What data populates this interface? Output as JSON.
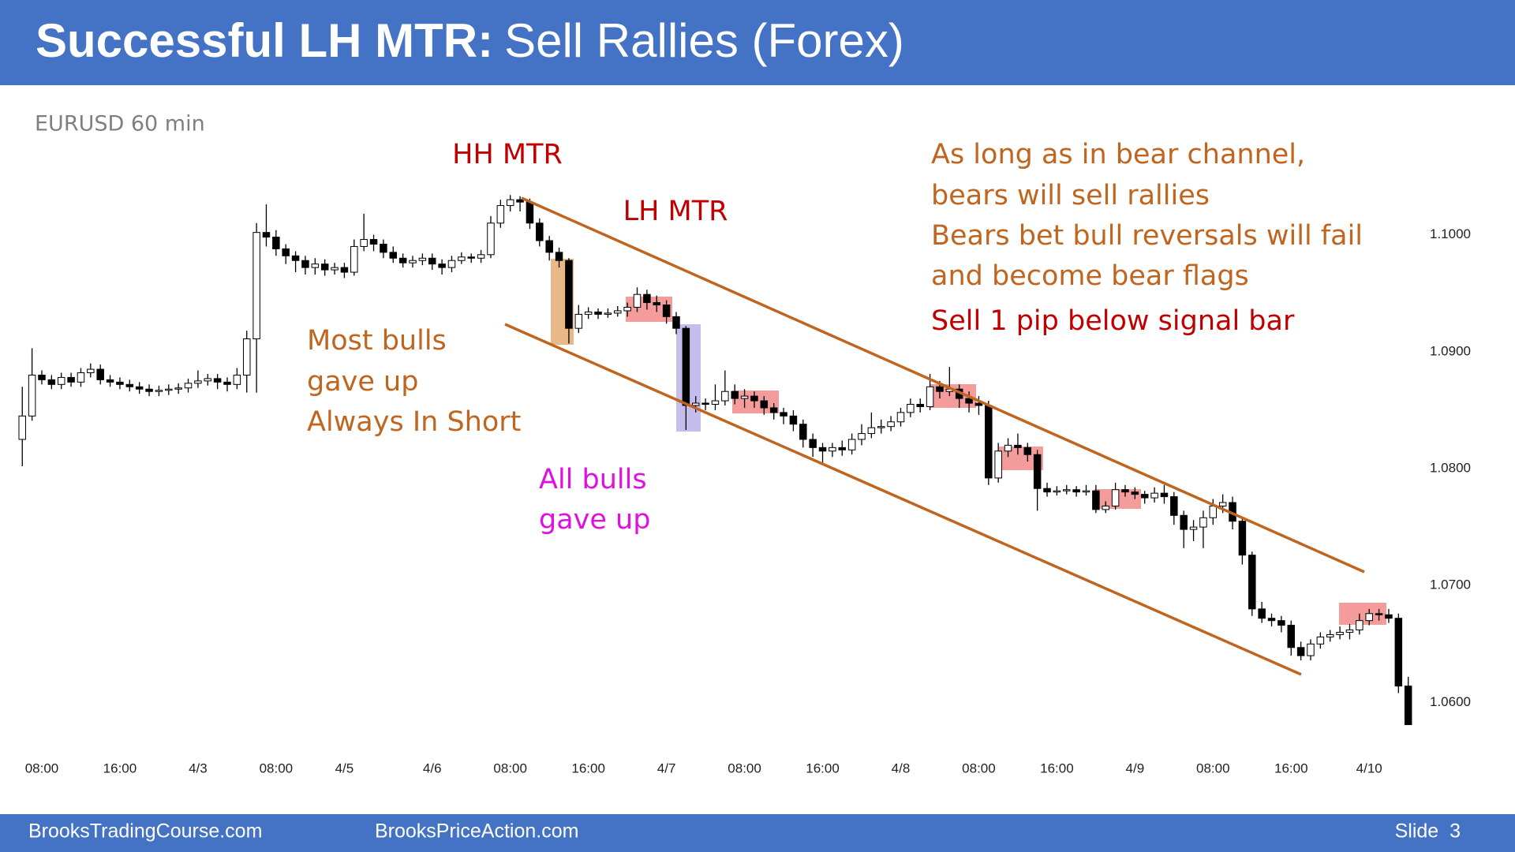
{
  "header": {
    "title_bold": "Successful LH MTR:",
    "title_rest": "Sell Rallies (Forex)"
  },
  "chart_data": {
    "type": "candlestick",
    "title": "EURUSD 60 min",
    "up_color": "#ffffff",
    "down_color": "#000000",
    "annotations": {
      "hh_mtr": "HH MTR",
      "lh_mtr": "LH MTR",
      "most_bulls": [
        "Most bulls",
        "gave up",
        "Always In Short"
      ],
      "all_bulls": [
        "All bulls",
        "gave up"
      ],
      "bear_channel": [
        "As long as in bear channel,",
        "bears will sell rallies",
        "Bears bet bull reversals will fail",
        "and become bear flags"
      ],
      "sell_rule": "Sell 1 pip below signal bar"
    },
    "xlim": [
      -2,
      145
    ],
    "xticks": [
      {
        "value": 2,
        "label": "08:00"
      },
      {
        "value": 10,
        "label": "16:00"
      },
      {
        "value": 18,
        "label": "4/3"
      },
      {
        "value": 26,
        "label": "08:00"
      },
      {
        "value": 33,
        "label": "4/5"
      },
      {
        "value": 42,
        "label": "4/6"
      },
      {
        "value": 50,
        "label": "08:00"
      },
      {
        "value": 58,
        "label": "16:00"
      },
      {
        "value": 66,
        "label": "4/7"
      },
      {
        "value": 74,
        "label": "08:00"
      },
      {
        "value": 82,
        "label": "16:00"
      },
      {
        "value": 90,
        "label": "4/8"
      },
      {
        "value": 98,
        "label": "08:00"
      },
      {
        "value": 106,
        "label": "16:00"
      },
      {
        "value": 114,
        "label": "4/9"
      },
      {
        "value": 122,
        "label": "08:00"
      },
      {
        "value": 130,
        "label": "16:00"
      },
      {
        "value": 138,
        "label": "4/10"
      }
    ],
    "ylim": [
      1.056,
      1.106
    ],
    "yticks": [
      {
        "value": 1.1,
        "label": "1.1000"
      },
      {
        "value": 1.09,
        "label": "1.0900"
      },
      {
        "value": 1.08,
        "label": "1.0800"
      },
      {
        "value": 1.07,
        "label": "1.0700"
      },
      {
        "value": 1.06,
        "label": "1.0600"
      }
    ],
    "open": [
      1.0825,
      1.0845,
      1.088,
      1.0876,
      1.0872,
      1.0878,
      1.0874,
      1.0882,
      1.0885,
      1.0876,
      1.0874,
      1.0872,
      1.087,
      1.0868,
      1.0866,
      1.0867,
      1.0868,
      1.0869,
      1.0873,
      1.0875,
      1.0877,
      1.0874,
      1.0872,
      1.088,
      1.0911,
      1.1002,
      1.0998,
      1.0988,
      1.0982,
      1.0978,
      1.0972,
      1.0975,
      1.097,
      1.0972,
      1.0968,
      1.099,
      1.0996,
      1.0992,
      1.0985,
      1.098,
      1.0976,
      1.0978,
      1.098,
      1.0975,
      1.0972,
      1.0978,
      1.0981,
      1.098,
      1.0983,
      1.101,
      1.1025,
      1.103,
      1.1028,
      1.101,
      1.0995,
      1.0985,
      1.0978,
      1.092,
      1.0932,
      1.0934,
      1.0932,
      1.0933,
      1.0935,
      1.0938,
      1.0949,
      1.0942,
      1.094,
      1.093,
      1.092,
      1.0854,
      1.0856,
      1.0855,
      1.0858,
      1.0866,
      1.086,
      1.0862,
      1.0858,
      1.0852,
      1.0848,
      1.0845,
      1.0838,
      1.0825,
      1.0818,
      1.0815,
      1.0818,
      1.0816,
      1.0825,
      1.083,
      1.0835,
      1.0836,
      1.084,
      1.0848,
      1.0855,
      1.0853,
      1.087,
      1.0866,
      1.0868,
      1.086,
      1.0856,
      1.0854,
      1.0792,
      1.0815,
      1.082,
      1.0818,
      1.0812,
      1.0783,
      1.078,
      1.0781,
      1.0782,
      1.078,
      1.0781,
      1.0765,
      1.0768,
      1.0782,
      1.078,
      1.0778,
      1.0775,
      1.0779,
      1.0776,
      1.076,
      1.0748,
      1.075,
      1.0758,
      1.0768,
      1.0771,
      1.0755,
      1.0726,
      1.068,
      1.0672,
      1.067,
      1.0666,
      1.0647,
      1.064,
      1.065,
      1.0656,
      1.0658,
      1.066,
      1.0662,
      1.067,
      1.0676,
      1.0675,
      1.0672,
      1.0614
    ],
    "high": [
      1.087,
      1.0903,
      1.0884,
      1.088,
      1.0882,
      1.0882,
      1.0886,
      1.089,
      1.0889,
      1.088,
      1.0878,
      1.0876,
      1.0874,
      1.0872,
      1.0871,
      1.0872,
      1.0873,
      1.0877,
      1.0884,
      1.0881,
      1.0881,
      1.0878,
      1.0886,
      1.0918,
      1.101,
      1.1026,
      1.1004,
      1.0992,
      1.0986,
      1.0982,
      1.098,
      1.0979,
      1.0976,
      1.0976,
      1.0996,
      1.1018,
      1.1,
      1.0996,
      1.099,
      1.0984,
      1.0982,
      1.0984,
      1.0984,
      1.0979,
      1.0982,
      1.0985,
      1.0984,
      1.0987,
      1.1016,
      1.103,
      1.1034,
      1.1033,
      1.1031,
      1.1014,
      1.0999,
      1.0989,
      1.098,
      1.094,
      1.0938,
      1.0937,
      1.0937,
      1.0939,
      1.0942,
      1.0955,
      1.0953,
      1.0948,
      1.0944,
      1.0934,
      1.0922,
      1.0862,
      1.086,
      1.0872,
      1.0884,
      1.0872,
      1.0868,
      1.0866,
      1.0862,
      1.0856,
      1.0852,
      1.085,
      1.0842,
      1.083,
      1.0822,
      1.0822,
      1.0824,
      1.083,
      1.0838,
      1.0848,
      1.0842,
      1.0845,
      1.0852,
      1.086,
      1.086,
      1.0881,
      1.0875,
      1.0887,
      1.0872,
      1.0866,
      1.0862,
      1.0858,
      1.0822,
      1.0826,
      1.083,
      1.0822,
      1.0816,
      1.0788,
      1.0785,
      1.0786,
      1.0785,
      1.0786,
      1.0786,
      1.0772,
      1.0788,
      1.0786,
      1.0784,
      1.0781,
      1.0784,
      1.0786,
      1.078,
      1.0764,
      1.0756,
      1.0764,
      1.0774,
      1.0778,
      1.0776,
      1.0758,
      1.0729,
      1.0686,
      1.0676,
      1.0674,
      1.067,
      1.0652,
      1.0654,
      1.066,
      1.0662,
      1.0665,
      1.0667,
      1.0676,
      1.068,
      1.068,
      1.068,
      1.0676,
      1.0622
    ],
    "low": [
      1.0802,
      1.0841,
      1.0872,
      1.0868,
      1.0868,
      1.087,
      1.087,
      1.0878,
      1.0872,
      1.087,
      1.0868,
      1.0866,
      1.0864,
      1.0862,
      1.0862,
      1.0863,
      1.0864,
      1.0865,
      1.0869,
      1.0871,
      1.0868,
      1.0866,
      1.0868,
      1.0865,
      1.0865,
      1.099,
      1.0982,
      1.0975,
      1.0968,
      1.0966,
      1.0966,
      1.0965,
      1.0966,
      1.0963,
      1.0965,
      1.0986,
      1.0986,
      1.098,
      1.0976,
      1.0972,
      1.0972,
      1.0974,
      1.097,
      1.0966,
      1.0968,
      1.0975,
      1.0976,
      1.0976,
      1.098,
      1.1006,
      1.102,
      1.102,
      1.1005,
      1.099,
      1.0978,
      1.0972,
      1.0907,
      1.0916,
      1.0928,
      1.0928,
      1.0929,
      1.093,
      1.093,
      1.0934,
      1.0936,
      1.0934,
      1.0924,
      1.0915,
      1.0833,
      1.0848,
      1.085,
      1.085,
      1.0854,
      1.0855,
      1.0852,
      1.0852,
      1.0846,
      1.0842,
      1.0838,
      1.0832,
      1.0818,
      1.081,
      1.0804,
      1.081,
      1.0811,
      1.0812,
      1.082,
      1.0826,
      1.083,
      1.0832,
      1.0836,
      1.0844,
      1.0848,
      1.085,
      1.086,
      1.0862,
      1.0852,
      1.0848,
      1.0846,
      1.0786,
      1.0788,
      1.081,
      1.0812,
      1.0806,
      1.0764,
      1.0776,
      1.0777,
      1.0778,
      1.0776,
      1.0777,
      1.0762,
      1.0762,
      1.0765,
      1.0776,
      1.0774,
      1.077,
      1.0771,
      1.077,
      1.0752,
      1.0732,
      1.0738,
      1.0732,
      1.0752,
      1.0762,
      1.0748,
      1.0718,
      1.0674,
      1.0668,
      1.0665,
      1.066,
      1.064,
      1.0636,
      1.0636,
      1.0646,
      1.0652,
      1.0654,
      1.0654,
      1.0658,
      1.0666,
      1.067,
      1.0668,
      1.0608,
      1.0581
    ],
    "close": [
      1.0845,
      1.088,
      1.0876,
      1.0872,
      1.0878,
      1.0874,
      1.0882,
      1.0885,
      1.0876,
      1.0874,
      1.0872,
      1.087,
      1.0868,
      1.0866,
      1.0867,
      1.0868,
      1.0869,
      1.0873,
      1.0875,
      1.0877,
      1.0874,
      1.0872,
      1.088,
      1.0911,
      1.1002,
      1.0998,
      1.0988,
      1.0982,
      1.0978,
      1.0972,
      1.0975,
      1.097,
      1.0972,
      1.0968,
      1.099,
      1.0996,
      1.0992,
      1.0985,
      1.098,
      1.0976,
      1.0978,
      1.098,
      1.0975,
      1.0972,
      1.0978,
      1.0981,
      1.098,
      1.0983,
      1.101,
      1.1025,
      1.103,
      1.1028,
      1.101,
      1.0995,
      1.0985,
      1.0978,
      1.092,
      1.0932,
      1.0934,
      1.0932,
      1.0933,
      1.0935,
      1.0938,
      1.0949,
      1.0942,
      1.094,
      1.093,
      1.092,
      1.0854,
      1.0856,
      1.0855,
      1.0858,
      1.0866,
      1.086,
      1.0862,
      1.0858,
      1.0852,
      1.0848,
      1.0845,
      1.0838,
      1.0825,
      1.0818,
      1.0815,
      1.0818,
      1.0816,
      1.0825,
      1.083,
      1.0835,
      1.0836,
      1.084,
      1.0848,
      1.0855,
      1.0853,
      1.087,
      1.0866,
      1.0868,
      1.086,
      1.0856,
      1.0854,
      1.0792,
      1.0815,
      1.082,
      1.0818,
      1.0812,
      1.0783,
      1.078,
      1.0781,
      1.0782,
      1.078,
      1.0781,
      1.0765,
      1.0768,
      1.0782,
      1.078,
      1.0778,
      1.0775,
      1.0779,
      1.0776,
      1.076,
      1.0748,
      1.075,
      1.0758,
      1.0768,
      1.0771,
      1.0755,
      1.0726,
      1.068,
      1.0672,
      1.067,
      1.0666,
      1.0647,
      1.064,
      1.065,
      1.0656,
      1.0658,
      1.066,
      1.0662,
      1.067,
      1.0676,
      1.0675,
      1.0672,
      1.0614,
      1.0581
    ]
  },
  "footer": {
    "left": "BrooksTradingCourse.com",
    "middle": "BrooksPriceAction.com",
    "slide": "Slide  3"
  }
}
